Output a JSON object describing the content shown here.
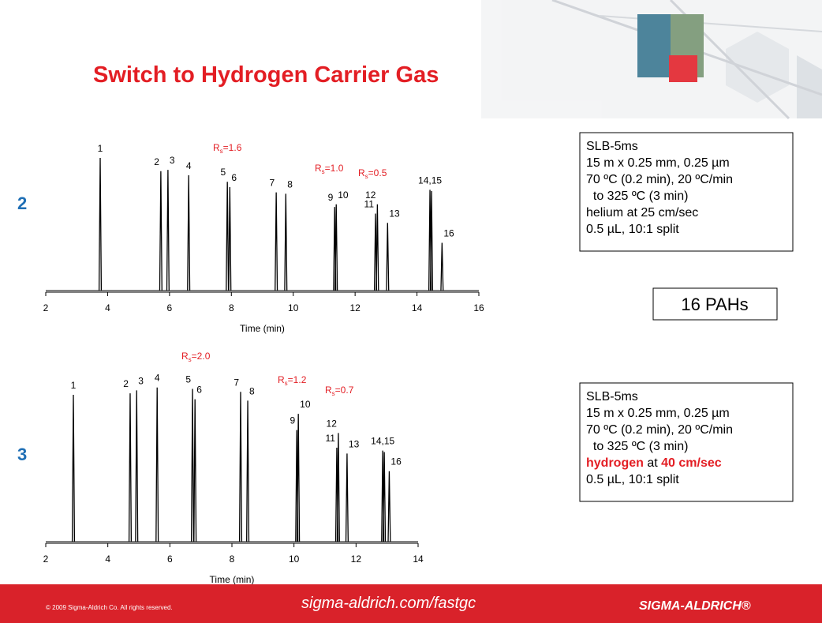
{
  "header": {
    "title": "Switch to Hydrogen Carrier Gas"
  },
  "chart_data": [
    {
      "type": "chromatogram",
      "panel_label": "2",
      "x_label": "Time (min)",
      "color": "#000000",
      "xlim": [
        2,
        16
      ],
      "xticks": [
        2,
        4,
        6,
        8,
        10,
        12,
        14,
        16
      ],
      "ylim": [
        0,
        100
      ],
      "x": [
        3.76,
        5.72,
        5.95,
        6.62,
        7.87,
        7.95,
        9.45,
        9.76,
        11.34,
        11.39,
        12.66,
        12.72,
        13.05,
        14.42,
        14.47,
        14.81
      ],
      "values": [
        100,
        90,
        91,
        87,
        82,
        78,
        74,
        73,
        63,
        65,
        58,
        65,
        51,
        76,
        75,
        36
      ],
      "peak_labels": [
        "1",
        "2",
        "3",
        "4",
        "5",
        "6",
        "7",
        "8",
        "9",
        "10",
        "11",
        "12",
        "13",
        "14,15",
        null,
        "16"
      ],
      "annotations": [
        {
          "symbol": "R",
          "subscript": "s",
          "text": "=1.6"
        },
        {
          "symbol": "R",
          "subscript": "s",
          "text": "=1.0"
        },
        {
          "symbol": "R",
          "subscript": "s",
          "text": "=0.5"
        }
      ]
    },
    {
      "type": "chromatogram",
      "panel_label": "3",
      "x_label": "Time (min)",
      "color": "#000000",
      "xlim": [
        2,
        14
      ],
      "xticks": [
        2,
        4,
        6,
        8,
        10,
        12,
        14
      ],
      "ylim": [
        0,
        100
      ],
      "x": [
        2.89,
        4.72,
        4.93,
        5.59,
        6.73,
        6.81,
        8.28,
        8.51,
        10.09,
        10.14,
        11.38,
        11.43,
        11.71,
        12.86,
        12.91,
        13.07
      ],
      "values": [
        100,
        101,
        103,
        105,
        104,
        97,
        102,
        96,
        76,
        87,
        64,
        74,
        60,
        62,
        61,
        48
      ],
      "peak_labels": [
        "1",
        "2",
        "3",
        "4",
        "5",
        "6",
        "7",
        "8",
        "9",
        "10",
        "11",
        "12",
        "13",
        "14,15",
        null,
        "16"
      ],
      "annotations": [
        {
          "symbol": "R",
          "subscript": "s",
          "text": "=2.0"
        },
        {
          "symbol": "R",
          "subscript": "s",
          "text": "=1.2"
        },
        {
          "symbol": "R",
          "subscript": "s",
          "text": "=0.7"
        }
      ]
    }
  ],
  "conditions": [
    [
      "SLB-5ms",
      "15 m x 0.25 mm, 0.25 µm",
      "70 ºC (0.2 min), 20 ºC/min",
      "  to 325 ºC (3 min)",
      "helium at 25 cm/sec",
      "0.5 µL, 10:1 split"
    ],
    [
      "SLB-5ms",
      "15 m x 0.25 mm, 0.25 µm",
      "70 ºC (0.2 min), 20 ºC/min",
      "  to 325 ºC (3 min)",
      [
        {
          "text": "hydrogen",
          "emphasis": true
        },
        {
          "text": " at ",
          "emphasis": false
        },
        {
          "text": "40 cm/sec",
          "emphasis": true
        }
      ],
      "0.5 µL, 10:1 split"
    ]
  ],
  "analyte_box": "16 PAHs",
  "footer": {
    "copyright": "© 2009 Sigma-Aldrich Co. All rights reserved.",
    "url": "sigma-aldrich.com/fastgc",
    "logo": "SIGMA-ALDRICH®"
  }
}
